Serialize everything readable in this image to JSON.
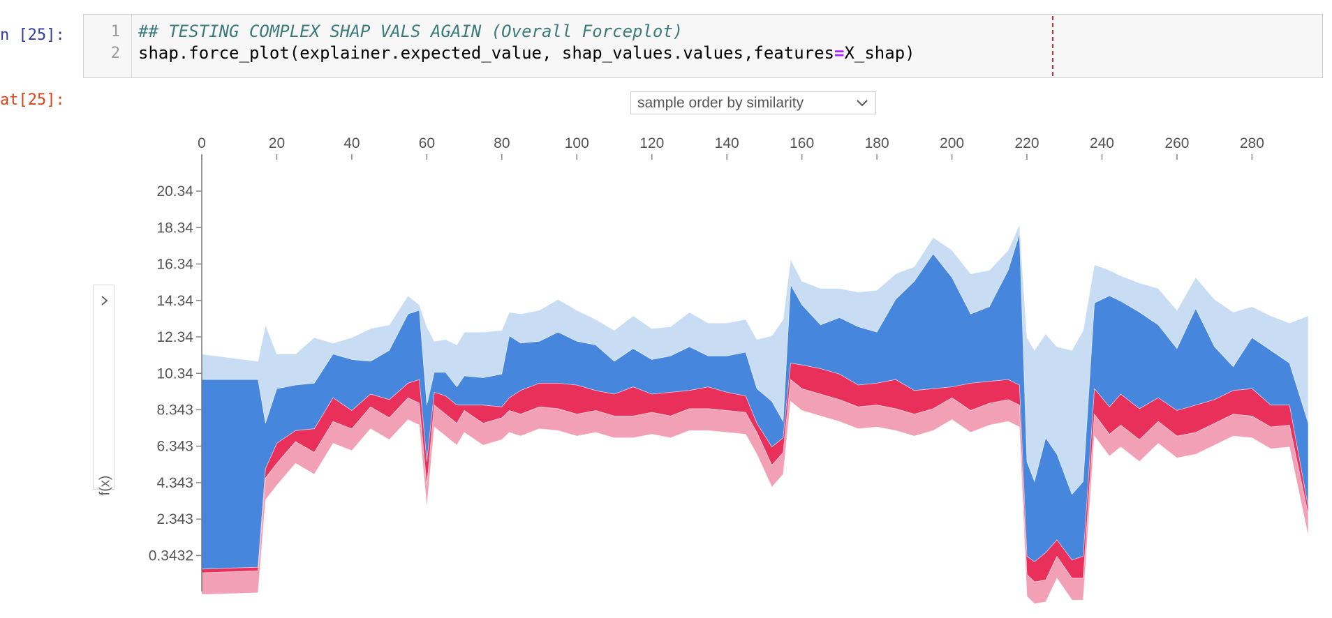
{
  "cell": {
    "in_prompt": "n [25]:",
    "out_prompt": "at[25]:",
    "line_numbers": [
      "1",
      "2"
    ],
    "comment_line": "## TESTING COMPLEX SHAP VALS AGAIN (Overall Forceplot)",
    "code_before_op": "shap.force_plot(explainer.expected_value, shap_values.values,features",
    "code_op": "=",
    "code_after_op": "X_shap)"
  },
  "controls": {
    "order_select_value": "sample order by similarity",
    "expand_icon": "chevron-right-icon",
    "select_icon": "chevron-down-icon"
  },
  "chart_data": {
    "type": "area",
    "title": "",
    "xlabel": "",
    "ylabel": "f(x)",
    "x_ticks": [
      "0",
      "20",
      "40",
      "60",
      "80",
      "100",
      "120",
      "140",
      "160",
      "180",
      "200",
      "220",
      "240",
      "260",
      "280"
    ],
    "y_ticks": [
      "20.34",
      "18.34",
      "16.34",
      "14.34",
      "12.34",
      "10.34",
      "8.343",
      "6.343",
      "4.343",
      "2.343",
      "0.3432"
    ],
    "xlim": [
      0,
      295
    ],
    "ylim": [
      -1.6,
      22.3
    ],
    "colors": {
      "red_dark": "#e8305a",
      "red_light": "#f2a0b6",
      "blue_dark": "#4686dd",
      "blue_light": "#c8ddf4"
    },
    "note_series_order": "bottom to top: red_light, red_dark, blue_dark, blue_light",
    "x": [
      0,
      15,
      17,
      20,
      25,
      30,
      35,
      40,
      45,
      50,
      55,
      58,
      60,
      62,
      65,
      68,
      70,
      75,
      80,
      82,
      85,
      90,
      95,
      100,
      105,
      110,
      115,
      120,
      125,
      130,
      135,
      140,
      145,
      148,
      152,
      155,
      157,
      160,
      165,
      170,
      175,
      180,
      185,
      190,
      195,
      200,
      205,
      210,
      215,
      218,
      220,
      222,
      225,
      228,
      232,
      235,
      238,
      242,
      245,
      250,
      255,
      260,
      265,
      270,
      275,
      280,
      285,
      290,
      295
    ],
    "series": [
      {
        "name": "red_light",
        "values": [
          -0.6,
          -0.5,
          4.6,
          5.4,
          6.6,
          6.0,
          7.7,
          7.3,
          8.5,
          7.9,
          9.0,
          8.7,
          4.2,
          8.6,
          8.1,
          7.6,
          8.3,
          7.6,
          7.9,
          8.3,
          8.1,
          8.5,
          8.4,
          8.1,
          8.3,
          8.0,
          8.0,
          8.2,
          8.0,
          8.4,
          8.4,
          8.3,
          8.2,
          7.1,
          5.3,
          6.0,
          10.0,
          9.5,
          9.2,
          8.9,
          8.5,
          8.6,
          8.4,
          8.1,
          8.4,
          9.0,
          8.3,
          8.7,
          8.9,
          8.6,
          -0.7,
          -1.1,
          -1.0,
          0.3,
          -0.9,
          -0.9,
          8.1,
          7.0,
          7.5,
          6.7,
          7.7,
          6.9,
          7.1,
          7.6,
          8.1,
          8.0,
          7.4,
          7.5,
          2.6
        ]
      },
      {
        "name": "red_dark",
        "values": [
          -0.4,
          -0.3,
          5.1,
          6.5,
          7.2,
          7.3,
          9.0,
          8.3,
          9.2,
          8.9,
          9.8,
          10.0,
          5.5,
          9.3,
          9.1,
          8.6,
          8.6,
          8.6,
          8.5,
          9.0,
          9.4,
          9.8,
          9.8,
          9.7,
          9.4,
          9.2,
          9.6,
          9.2,
          9.3,
          9.4,
          9.6,
          9.3,
          9.1,
          7.6,
          6.3,
          6.8,
          10.9,
          10.8,
          10.6,
          10.3,
          9.7,
          9.8,
          10.0,
          9.4,
          9.5,
          9.6,
          9.8,
          9.9,
          10.0,
          9.7,
          0.3,
          0.0,
          0.5,
          1.2,
          0.1,
          0.3,
          9.5,
          8.5,
          9.2,
          8.4,
          9.0,
          8.3,
          8.6,
          8.9,
          9.4,
          9.5,
          8.6,
          8.6,
          3.0
        ]
      },
      {
        "name": "blue_dark",
        "values": [
          10.0,
          10.0,
          7.6,
          9.5,
          9.7,
          9.8,
          11.4,
          11.1,
          11.0,
          11.6,
          13.6,
          13.8,
          8.6,
          10.4,
          10.4,
          9.6,
          10.2,
          10.1,
          10.3,
          12.4,
          12.0,
          12.1,
          12.6,
          12.1,
          11.9,
          11.0,
          11.7,
          11.1,
          11.3,
          11.8,
          11.3,
          11.3,
          11.5,
          9.5,
          8.8,
          7.7,
          15.2,
          14.1,
          13.0,
          13.4,
          12.9,
          12.6,
          14.4,
          15.4,
          16.9,
          15.6,
          13.6,
          14.0,
          16.0,
          18.0,
          5.5,
          4.4,
          6.8,
          5.9,
          3.7,
          4.4,
          14.2,
          14.6,
          14.3,
          13.7,
          13.0,
          11.7,
          13.9,
          11.8,
          10.7,
          12.3,
          11.6,
          10.9,
          7.6
        ]
      },
      {
        "name": "blue_light",
        "values": [
          11.4,
          11.0,
          13.0,
          11.4,
          11.4,
          12.3,
          12.0,
          12.3,
          12.8,
          13.0,
          14.6,
          14.1,
          12.9,
          12.1,
          12.2,
          11.9,
          12.6,
          12.6,
          12.7,
          13.7,
          13.6,
          13.8,
          14.4,
          13.8,
          13.3,
          12.7,
          13.5,
          12.8,
          12.9,
          13.7,
          13.1,
          13.1,
          13.3,
          12.2,
          12.4,
          13.3,
          16.6,
          15.4,
          15.0,
          15.0,
          14.8,
          14.9,
          15.8,
          16.2,
          17.8,
          17.1,
          15.8,
          16.0,
          17.1,
          18.5,
          12.3,
          11.6,
          12.5,
          11.8,
          11.6,
          12.7,
          16.3,
          16.0,
          15.7,
          15.3,
          15.0,
          13.8,
          15.6,
          14.4,
          13.7,
          14.0,
          13.5,
          13.1,
          13.5
        ]
      }
    ]
  }
}
